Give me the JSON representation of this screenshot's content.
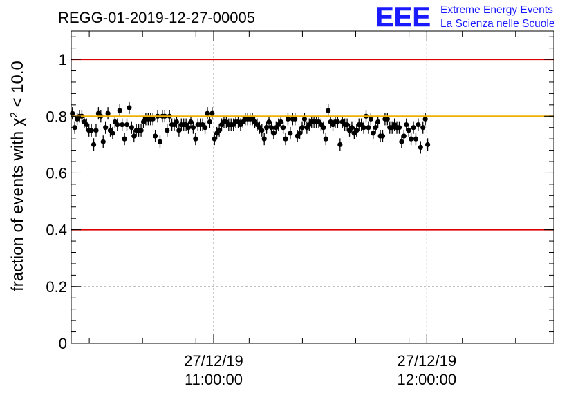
{
  "title": "REGG-01-2019-12-27-00005",
  "logo": {
    "text": "EEE",
    "line1": "Extreme Energy Events",
    "line2": "La Scienza nelle Scuole",
    "color": "#1a1aff"
  },
  "chart_data": {
    "type": "scatter",
    "title": "REGG-01-2019-12-27-00005",
    "ylabel": {
      "prefix": "fraction of events with χ",
      "sup": "2",
      "suffix": " < 10.0"
    },
    "xlabel": "",
    "x_units": "seconds after 27/12/19 10:19:55",
    "xlim": [
      0,
      8150
    ],
    "ylim": [
      0,
      1.1
    ],
    "grid": true,
    "yticks": [
      {
        "value": 0,
        "label": "0"
      },
      {
        "value": 0.2,
        "label": "0.2"
      },
      {
        "value": 0.4,
        "label": "0.4"
      },
      {
        "value": 0.6,
        "label": "0.6"
      },
      {
        "value": 0.8,
        "label": "0.8"
      },
      {
        "value": 1,
        "label": "1"
      }
    ],
    "xticks": [
      {
        "value": 2405,
        "label_date": "27/12/19",
        "label_time": "11:00:00"
      },
      {
        "value": 6005,
        "label_date": "27/12/19",
        "label_time": "12:00:00"
      }
    ],
    "x_minor_step": 900,
    "x_minor_start": 305,
    "reference_lines": [
      {
        "y": 1.0,
        "color": "#dd0000"
      },
      {
        "y": 0.4,
        "color": "#dd0000"
      },
      {
        "y": 0.8,
        "color": "#f0b000"
      }
    ],
    "point_color": "#000000",
    "point_spacing_s": 40,
    "error_bar": 0.022,
    "values": [
      0.81,
      0.76,
      0.79,
      0.8,
      0.8,
      0.78,
      0.77,
      0.75,
      0.75,
      0.7,
      0.75,
      0.81,
      0.8,
      0.71,
      0.76,
      0.81,
      0.75,
      0.74,
      0.78,
      0.77,
      0.82,
      0.77,
      0.72,
      0.77,
      0.83,
      0.76,
      0.73,
      0.75,
      0.75,
      0.75,
      0.78,
      0.79,
      0.79,
      0.79,
      0.79,
      0.73,
      0.8,
      0.71,
      0.8,
      0.8,
      0.75,
      0.8,
      0.77,
      0.77,
      0.78,
      0.75,
      0.77,
      0.77,
      0.77,
      0.76,
      0.78,
      0.76,
      0.72,
      0.77,
      0.77,
      0.77,
      0.76,
      0.81,
      0.78,
      0.81,
      0.72,
      0.74,
      0.75,
      0.77,
      0.78,
      0.78,
      0.77,
      0.77,
      0.77,
      0.78,
      0.78,
      0.77,
      0.78,
      0.79,
      0.79,
      0.79,
      0.79,
      0.78,
      0.77,
      0.76,
      0.75,
      0.72,
      0.76,
      0.78,
      0.76,
      0.74,
      0.76,
      0.77,
      0.78,
      0.76,
      0.72,
      0.79,
      0.74,
      0.79,
      0.79,
      0.73,
      0.74,
      0.76,
      0.79,
      0.76,
      0.77,
      0.78,
      0.78,
      0.78,
      0.78,
      0.77,
      0.76,
      0.72,
      0.82,
      0.78,
      0.77,
      0.78,
      0.78,
      0.7,
      0.78,
      0.77,
      0.77,
      0.75,
      0.76,
      0.74,
      0.75,
      0.77,
      0.77,
      0.76,
      0.8,
      0.76,
      0.79,
      0.74,
      0.76,
      0.78,
      0.73,
      0.73,
      0.79,
      0.79,
      0.76,
      0.76,
      0.77,
      0.76,
      0.76,
      0.71,
      0.73,
      0.77,
      0.75,
      0.72,
      0.76,
      0.72,
      0.77,
      0.69,
      0.76,
      0.79,
      0.7
    ]
  }
}
